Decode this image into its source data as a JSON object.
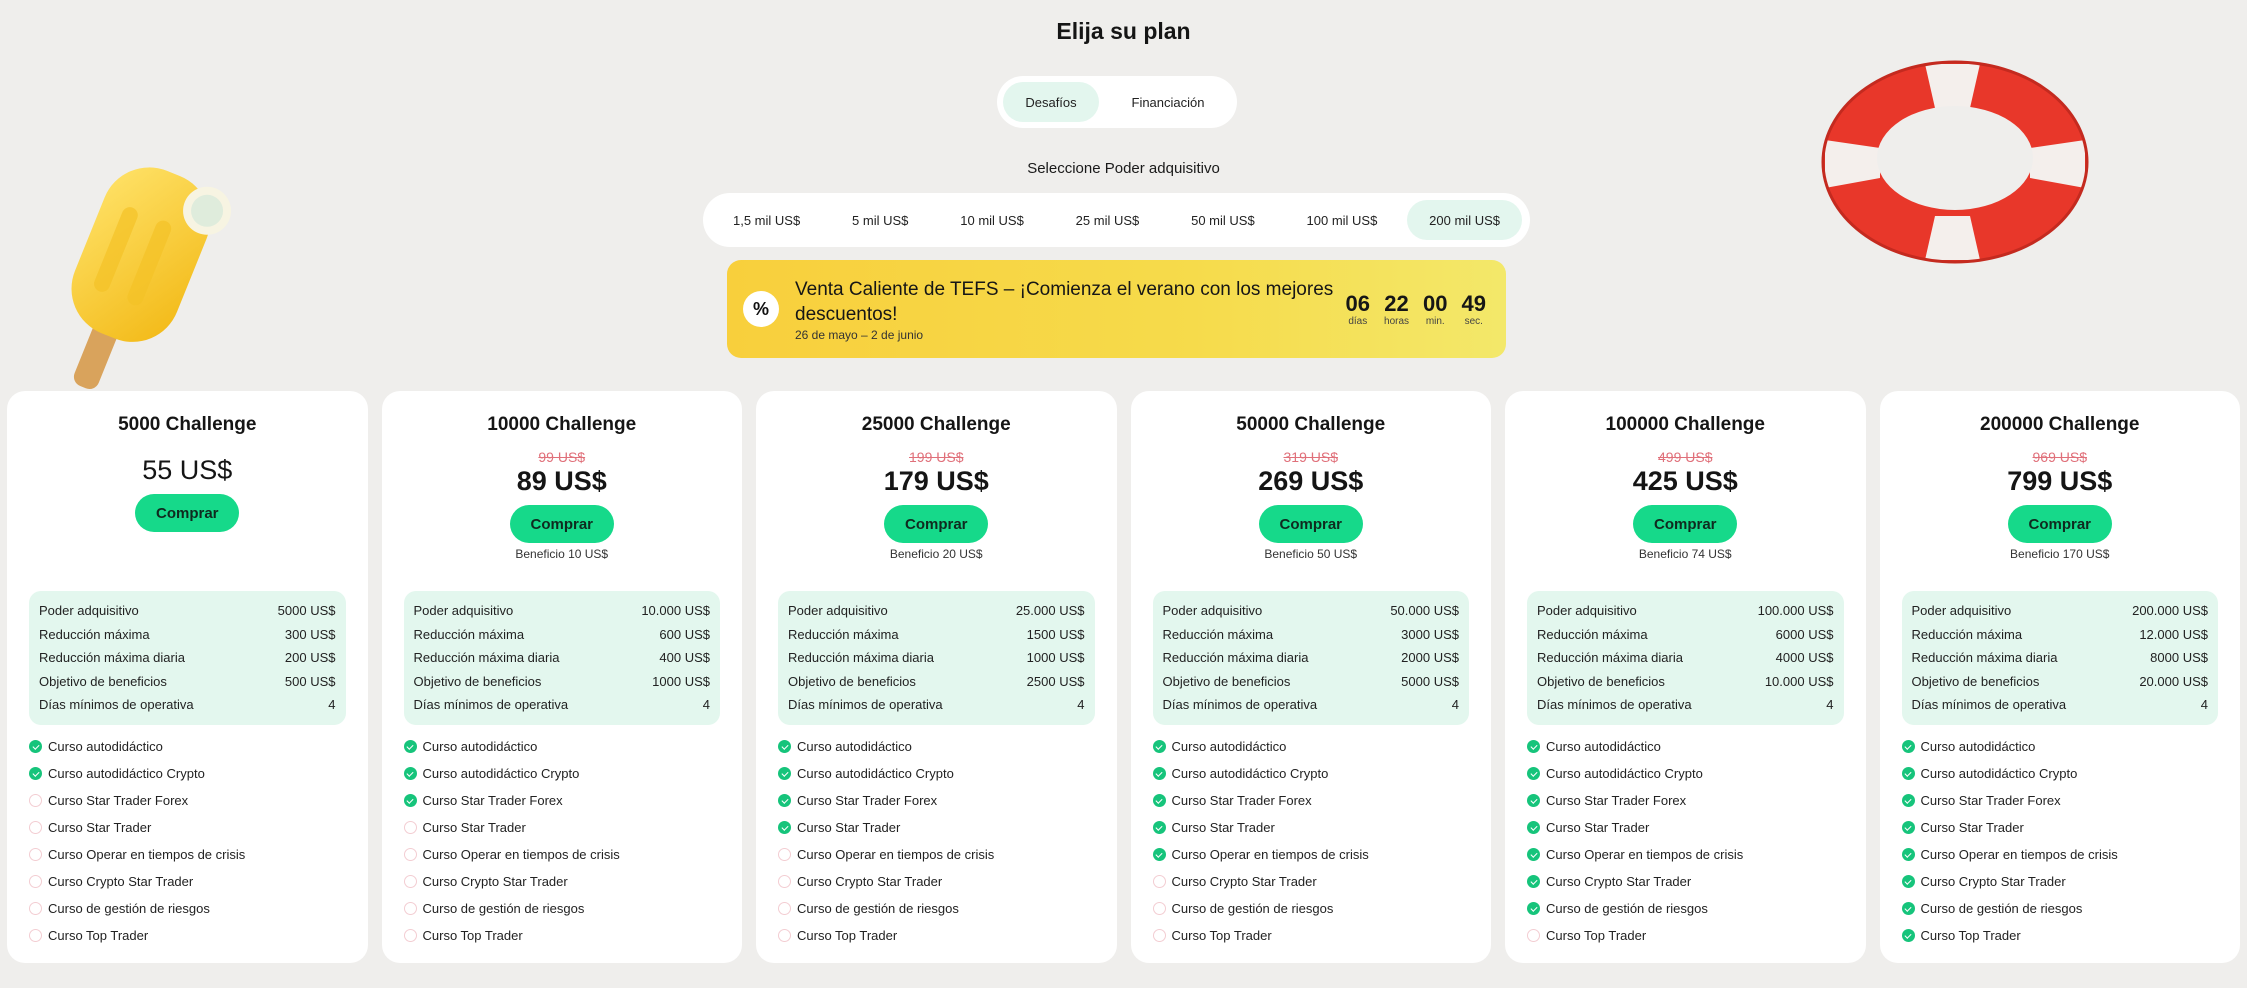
{
  "page": {
    "title": "Elija su plan"
  },
  "mode_toggle": {
    "options": [
      "Desafíos",
      "Financiación"
    ],
    "selected": "Desafíos"
  },
  "power": {
    "label": "Seleccione Poder adquisitivo",
    "options": [
      "1,5 mil US$",
      "5 mil US$",
      "10 mil US$",
      "25 mil US$",
      "50 mil US$",
      "100 mil US$",
      "200 mil US$"
    ],
    "selected": "200 mil US$"
  },
  "promo": {
    "icon": "percent-icon",
    "headline": "Venta Caliente de TEFS – ¡Comienza el verano con los mejores descuentos!",
    "dates": "26 de mayo – 2 de junio",
    "countdown": [
      {
        "value": "06",
        "label": "días"
      },
      {
        "value": "22",
        "label": "horas"
      },
      {
        "value": "00",
        "label": "min."
      },
      {
        "value": "49",
        "label": "sec."
      }
    ]
  },
  "stat_labels": [
    "Poder adquisitivo",
    "Reducción máxima",
    "Reducción máxima diaria",
    "Objetivo de beneficios",
    "Días mínimos de operativa"
  ],
  "feature_labels": [
    "Curso autodidáctico",
    "Curso autodidáctico Crypto",
    "Curso Star Trader Forex",
    "Curso Star Trader",
    "Curso Operar en tiempos de crisis",
    "Curso Crypto Star Trader",
    "Curso de gestión de riesgos",
    "Curso Top Trader"
  ],
  "buy_label": "Comprar",
  "colors": {
    "accent": "#16d98a",
    "check": "#16c47b",
    "strike": "#e0707a",
    "stats_bg": "#e3f7ee"
  },
  "plans": [
    {
      "title": "5000 Challenge",
      "old_price": "",
      "price": "55 US$",
      "benefit": "",
      "stats": [
        "5000 US$",
        "300 US$",
        "200 US$",
        "500 US$",
        "4"
      ],
      "features": [
        true,
        true,
        false,
        false,
        false,
        false,
        false,
        false
      ]
    },
    {
      "title": "10000 Challenge",
      "old_price": "99 US$",
      "price": "89 US$",
      "benefit": "Beneficio 10 US$",
      "stats": [
        "10.000 US$",
        "600 US$",
        "400 US$",
        "1000 US$",
        "4"
      ],
      "features": [
        true,
        true,
        true,
        false,
        false,
        false,
        false,
        false
      ]
    },
    {
      "title": "25000 Challenge",
      "old_price": "199 US$",
      "price": "179 US$",
      "benefit": "Beneficio 20 US$",
      "stats": [
        "25.000 US$",
        "1500 US$",
        "1000 US$",
        "2500 US$",
        "4"
      ],
      "features": [
        true,
        true,
        true,
        true,
        false,
        false,
        false,
        false
      ]
    },
    {
      "title": "50000 Challenge",
      "old_price": "319 US$",
      "price": "269 US$",
      "benefit": "Beneficio 50 US$",
      "stats": [
        "50.000 US$",
        "3000 US$",
        "2000 US$",
        "5000 US$",
        "4"
      ],
      "features": [
        true,
        true,
        true,
        true,
        true,
        false,
        false,
        false
      ]
    },
    {
      "title": "100000 Challenge",
      "old_price": "499 US$",
      "price": "425 US$",
      "benefit": "Beneficio 74 US$",
      "stats": [
        "100.000 US$",
        "6000 US$",
        "4000 US$",
        "10.000 US$",
        "4"
      ],
      "features": [
        true,
        true,
        true,
        true,
        true,
        true,
        true,
        false
      ]
    },
    {
      "title": "200000 Challenge",
      "old_price": "969 US$",
      "price": "799 US$",
      "benefit": "Beneficio 170 US$",
      "stats": [
        "200.000 US$",
        "12.000 US$",
        "8000 US$",
        "20.000 US$",
        "4"
      ],
      "features": [
        true,
        true,
        true,
        true,
        true,
        true,
        true,
        true
      ]
    }
  ]
}
